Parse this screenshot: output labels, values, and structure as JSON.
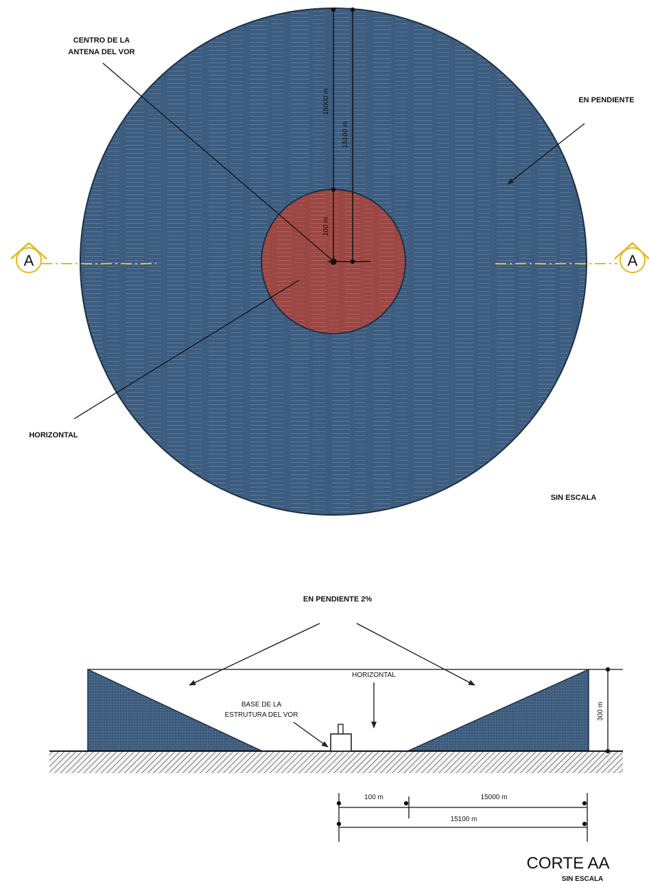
{
  "plan": {
    "label_center": [
      "CENTRO DE LA",
      "ANTENA DEL VOR"
    ],
    "label_slope": "EN PENDIENTE",
    "label_horizontal": "HORIZONTAL",
    "dim_outer_1": "15000 m",
    "dim_outer_2": "15100 m",
    "dim_inner": "100 m",
    "section_marker": "A",
    "scale_note": "SIN ESCALA",
    "colors": {
      "outer_zone": "#3d5d80",
      "inner_zone": "#9b4743",
      "section_line": "#e6b81c"
    }
  },
  "section": {
    "label_slope": "EN PENDIENTE 2%",
    "label_horizontal": "HORIZONTAL",
    "label_base": [
      "BASE DE LA",
      "ESTRUTURA DEL VOR"
    ],
    "dim_height": "300 m",
    "dim_100": "100 m",
    "dim_15000": "15000 m",
    "dim_15100": "15100 m",
    "title": "CORTE AA",
    "scale_note": "SIN ESCALA"
  }
}
